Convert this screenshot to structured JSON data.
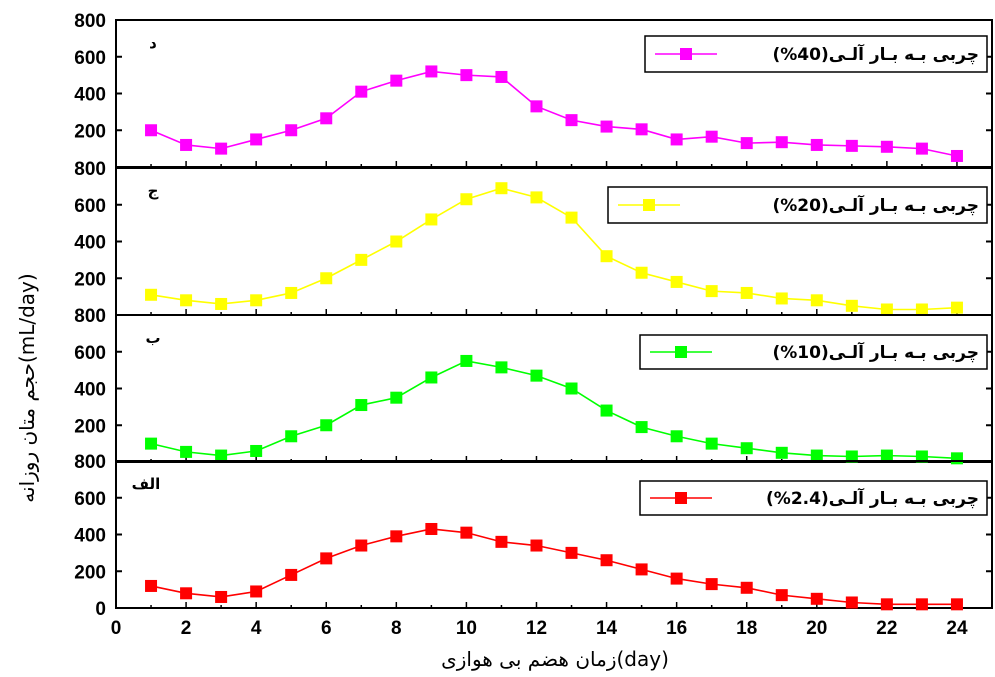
{
  "chart_data": {
    "type": "line",
    "xlabel": "زمان هضم بی هوازی(day)",
    "ylabel": "حجم متان روزانه(mL/day)",
    "x": [
      1,
      2,
      3,
      4,
      5,
      6,
      7,
      8,
      9,
      10,
      11,
      12,
      13,
      14,
      15,
      16,
      17,
      18,
      19,
      20,
      21,
      22,
      23,
      24
    ],
    "xlim": [
      0,
      25
    ],
    "xticks": [
      0,
      2,
      4,
      6,
      8,
      10,
      12,
      14,
      16,
      18,
      20,
      22,
      24
    ],
    "ylim": [
      0,
      800
    ],
    "yticks": [
      0,
      200,
      400,
      600,
      800
    ],
    "grid": false,
    "legend_position": "top-right",
    "panels": [
      {
        "letter": "د",
        "series": [
          {
            "name": "چربی بـه بـار آلـی(40%)",
            "color": "#ff00ff",
            "values": [
              200,
              120,
              100,
              150,
              200,
              265,
              410,
              470,
              520,
              500,
              490,
              330,
              255,
              220,
              205,
              150,
              165,
              130,
              135,
              120,
              115,
              110,
              100,
              60
            ]
          }
        ]
      },
      {
        "letter": "ج",
        "series": [
          {
            "name": "چربی بـه بـار آلـی(20%)",
            "color": "#ffff00",
            "values": [
              110,
              80,
              60,
              80,
              120,
              200,
              300,
              400,
              520,
              630,
              690,
              640,
              530,
              320,
              230,
              180,
              130,
              120,
              90,
              80,
              50,
              30,
              30,
              40
            ]
          }
        ]
      },
      {
        "letter": "ب",
        "series": [
          {
            "name": "چربی بـه بـار آلـی(10%)",
            "color": "#00ff00",
            "values": [
              100,
              55,
              35,
              60,
              140,
              200,
              310,
              350,
              460,
              550,
              515,
              470,
              400,
              280,
              190,
              140,
              100,
              75,
              50,
              35,
              30,
              35,
              30,
              20
            ]
          }
        ]
      },
      {
        "letter": "الف",
        "series": [
          {
            "name": "چربی بـه بـار آلـی(2.4%)",
            "color": "#ff0000",
            "values": [
              120,
              80,
              60,
              90,
              180,
              270,
              340,
              390,
              430,
              410,
              360,
              340,
              300,
              260,
              210,
              160,
              130,
              110,
              70,
              50,
              30,
              20,
              20,
              20
            ]
          }
        ]
      }
    ]
  }
}
